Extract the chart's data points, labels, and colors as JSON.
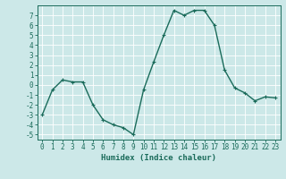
{
  "x": [
    0,
    1,
    2,
    3,
    4,
    5,
    6,
    7,
    8,
    9,
    10,
    11,
    12,
    13,
    14,
    15,
    16,
    17,
    18,
    19,
    20,
    21,
    22,
    23
  ],
  "y": [
    -3,
    -0.5,
    0.5,
    0.3,
    0.3,
    -2.0,
    -3.5,
    -4.0,
    -4.3,
    -5.0,
    -0.5,
    2.3,
    5.0,
    7.5,
    7.0,
    7.5,
    7.5,
    6.0,
    1.5,
    -0.3,
    -0.8,
    -1.6,
    -1.2,
    -1.3
  ],
  "line_color": "#1a6b5a",
  "marker": "+",
  "marker_size": 3,
  "linewidth": 1.0,
  "background_color": "#cce8e8",
  "grid_color": "#ffffff",
  "xlabel": "Humidex (Indice chaleur)",
  "ylim": [
    -5.5,
    8.0
  ],
  "xlim": [
    -0.5,
    23.5
  ],
  "yticks": [
    -5,
    -4,
    -3,
    -2,
    -1,
    0,
    1,
    2,
    3,
    4,
    5,
    6,
    7
  ],
  "xticks": [
    0,
    1,
    2,
    3,
    4,
    5,
    6,
    7,
    8,
    9,
    10,
    11,
    12,
    13,
    14,
    15,
    16,
    17,
    18,
    19,
    20,
    21,
    22,
    23
  ],
  "tick_color": "#1a6b5a",
  "axis_color": "#1a6b5a",
  "label_fontsize": 6.5,
  "tick_fontsize": 5.5
}
